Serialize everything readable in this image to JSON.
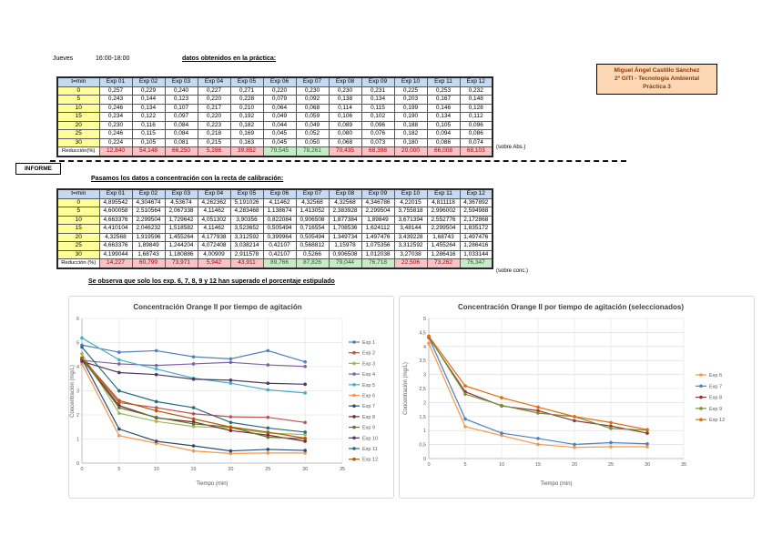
{
  "header": {
    "day": "Jueves",
    "time": "16:00-18:00",
    "note": "datos obtenidos en la práctica:"
  },
  "name_card": {
    "line1": "Miguel Ángel Castillo Sánchez",
    "line2": "2º GITI - Tecnología Ambiental",
    "line3": "Práctica 3"
  },
  "informe_label": "INFORME",
  "section2_note": "Pasamos los datos a concentración con la recta de calibración:",
  "observation": "Se observa que solo los exp. 6, 7, 8, 9 y 12 han superado el porcentaje estipulado",
  "table_abs": {
    "col_headers": [
      "t=min",
      "Exp 01",
      "Exp 02",
      "Exp 03",
      "Exp 04",
      "Exp 05",
      "Exp 06",
      "Exp 07",
      "Exp 08",
      "Exp 09",
      "Exp 10",
      "Exp 11",
      "Exp 12"
    ],
    "time_rows": [
      {
        "t": "0",
        "values": [
          "0,257",
          "0,229",
          "0,240",
          "0,227",
          "0,271",
          "0,220",
          "0,230",
          "0,230",
          "0,231",
          "0,225",
          "0,253",
          "0,232"
        ]
      },
      {
        "t": "5",
        "values": [
          "0,243",
          "0,144",
          "0,123",
          "0,220",
          "0,228",
          "0,079",
          "0,092",
          "0,138",
          "0,134",
          "0,203",
          "0,167",
          "0,148"
        ]
      },
      {
        "t": "10",
        "values": [
          "0,246",
          "0,134",
          "0,107",
          "0,217",
          "0,210",
          "0,064",
          "0,068",
          "0,114",
          "0,115",
          "0,199",
          "0,146",
          "0,128"
        ]
      },
      {
        "t": "15",
        "values": [
          "0,234",
          "0,122",
          "0,097",
          "0,220",
          "0,192",
          "0,049",
          "0,059",
          "0,106",
          "0,102",
          "0,190",
          "0,134",
          "0,112"
        ]
      },
      {
        "t": "20",
        "values": [
          "0,230",
          "0,116",
          "0,084",
          "0,223",
          "0,182",
          "0,044",
          "0,049",
          "0,089",
          "0,096",
          "0,188",
          "0,105",
          "0,096"
        ]
      },
      {
        "t": "25",
        "values": [
          "0,246",
          "0,115",
          "0,084",
          "0,218",
          "0,169",
          "0,045",
          "0,052",
          "0,080",
          "0,076",
          "0,182",
          "0,094",
          "0,086"
        ]
      },
      {
        "t": "30",
        "values": [
          "0,224",
          "0,105",
          "0,081",
          "0,215",
          "0,163",
          "0,045",
          "0,050",
          "0,068",
          "0,073",
          "0,180",
          "0,086",
          "0,074"
        ]
      }
    ],
    "reduction_label": "Reducción(%)",
    "reduction": [
      {
        "text": "12,840",
        "state": "fail"
      },
      {
        "text": "54,148",
        "state": "fail"
      },
      {
        "text": "66,250",
        "state": "fail"
      },
      {
        "text": "5,286",
        "state": "fail"
      },
      {
        "text": "39,852",
        "state": "fail"
      },
      {
        "text": "79,545",
        "state": "pass"
      },
      {
        "text": "78,261",
        "state": "pass"
      },
      {
        "text": "70,435",
        "state": "fail"
      },
      {
        "text": "68,398",
        "state": "fail"
      },
      {
        "text": "20,000",
        "state": "fail"
      },
      {
        "text": "66,008",
        "state": "fail"
      },
      {
        "text": "68,103",
        "state": "fail"
      }
    ],
    "suffix": "(sobre Abs.)"
  },
  "table_conc": {
    "col_headers": [
      "t=min",
      "Exp 01",
      "Exp 02",
      "Exp 03",
      "Exp 04",
      "Exp 05",
      "Exp 06",
      "Exp 07",
      "Exp 08",
      "Exp 09",
      "Exp 10",
      "Exp 11",
      "Exp 12"
    ],
    "time_rows": [
      {
        "t": "0",
        "values": [
          "4,895542",
          "4,304674",
          "4,53674",
          "4,262362",
          "5,191026",
          "4,11462",
          "4,32568",
          "4,32568",
          "4,346786",
          "4,22015",
          "4,811118",
          "4,367892"
        ]
      },
      {
        "t": "5",
        "values": [
          "4,600058",
          "2,510564",
          "2,067338",
          "4,11462",
          "4,283468",
          "1,138674",
          "1,413052",
          "2,383928",
          "2,299504",
          "3,755818",
          "2,996002",
          "2,594988"
        ]
      },
      {
        "t": "10",
        "values": [
          "4,663376",
          "2,299504",
          "1,729642",
          "4,051302",
          "3,90356",
          "0,822084",
          "0,906508",
          "1,877384",
          "1,89849",
          "3,671394",
          "2,552776",
          "2,172868"
        ]
      },
      {
        "t": "15",
        "values": [
          "4,410104",
          "2,046232",
          "1,518582",
          "4,11462",
          "3,523652",
          "0,505494",
          "0,716554",
          "1,708536",
          "1,624112",
          "3,48144",
          "2,299504",
          "1,835172"
        ]
      },
      {
        "t": "20",
        "values": [
          "4,32568",
          "1,919596",
          "1,455264",
          "4,177938",
          "3,312592",
          "0,399964",
          "0,505494",
          "1,349734",
          "1,497476",
          "3,439228",
          "1,68743",
          "1,497476"
        ]
      },
      {
        "t": "25",
        "values": [
          "4,663376",
          "1,89849",
          "1,244204",
          "4,072408",
          "3,038214",
          "0,42107",
          "0,568812",
          "1,15978",
          "1,075356",
          "3,312592",
          "1,455264",
          "1,286416"
        ]
      },
      {
        "t": "30",
        "values": [
          "4,199044",
          "1,68743",
          "1,180886",
          "4,00909",
          "2,911578",
          "0,42107",
          "0,5266",
          "0,906508",
          "1,012038",
          "3,27038",
          "1,286416",
          "1,033144"
        ]
      }
    ],
    "reduction_label": "Reducción (%)",
    "reduction": [
      {
        "text": "14,227",
        "state": "fail"
      },
      {
        "text": "60,799",
        "state": "fail"
      },
      {
        "text": "73,971",
        "state": "fail"
      },
      {
        "text": "5,942",
        "state": "fail"
      },
      {
        "text": "43,911",
        "state": "fail"
      },
      {
        "text": "89,766",
        "state": "pass"
      },
      {
        "text": "87,826",
        "state": "pass"
      },
      {
        "text": "79,044",
        "state": "pass"
      },
      {
        "text": "76,718",
        "state": "pass"
      },
      {
        "text": "22,506",
        "state": "fail"
      },
      {
        "text": "73,262",
        "state": "fail"
      },
      {
        "text": "76,347",
        "state": "pass"
      }
    ],
    "suffix": "(sobre conc.)"
  },
  "colors": {
    "header_fill": "#C5D9F1",
    "time_fill": "#FFFF99",
    "fail_fill": "#F8C3C6",
    "fail_text": "#B40000",
    "pass_fill": "#C8EAC8",
    "pass_text": "#1E6B1E",
    "card_fill": "#FBD7B4"
  },
  "chart_data": [
    {
      "type": "line",
      "title": "Concentración Orange II por tiempo de agitación",
      "xlabel": "Tiempo (min)",
      "ylabel": "Concentración (mg/L)",
      "x": [
        0,
        5,
        10,
        15,
        20,
        25,
        30
      ],
      "xlim": [
        0,
        35
      ],
      "xticks": [
        0,
        5,
        10,
        15,
        20,
        25,
        30,
        35
      ],
      "ylim": [
        0,
        6
      ],
      "yticks": [
        0,
        1,
        2,
        3,
        4,
        5,
        6
      ],
      "grid": true,
      "legend_position": "right",
      "series": [
        {
          "name": "Exp 1",
          "color": "#4F81BD",
          "values": [
            4.895542,
            4.600058,
            4.663376,
            4.410104,
            4.32568,
            4.663376,
            4.199044
          ]
        },
        {
          "name": "Exp 2",
          "color": "#C0504D",
          "values": [
            4.304674,
            2.510564,
            2.299504,
            2.046232,
            1.919596,
            1.89849,
            1.68743
          ]
        },
        {
          "name": "Exp 3",
          "color": "#9BBB59",
          "values": [
            4.53674,
            2.067338,
            1.729642,
            1.518582,
            1.455264,
            1.244204,
            1.180886
          ]
        },
        {
          "name": "Exp 4",
          "color": "#8064A2",
          "values": [
            4.262362,
            4.11462,
            4.051302,
            4.11462,
            4.177938,
            4.072408,
            4.00909
          ]
        },
        {
          "name": "Exp 5",
          "color": "#4BACC6",
          "values": [
            5.191026,
            4.283468,
            3.90356,
            3.523652,
            3.312592,
            3.038214,
            2.911578
          ]
        },
        {
          "name": "Exp 6",
          "color": "#F79646",
          "values": [
            4.11462,
            1.138674,
            0.822084,
            0.505494,
            0.399964,
            0.42107,
            0.42107
          ]
        },
        {
          "name": "Exp 7",
          "color": "#2C4D75",
          "values": [
            4.32568,
            1.413052,
            0.906508,
            0.716554,
            0.505494,
            0.568812,
            0.5266
          ]
        },
        {
          "name": "Exp 8",
          "color": "#772C2A",
          "values": [
            4.32568,
            2.383928,
            1.877384,
            1.708536,
            1.349734,
            1.15978,
            0.906508
          ]
        },
        {
          "name": "Exp 9",
          "color": "#5F7530",
          "values": [
            4.346786,
            2.299504,
            1.89849,
            1.624112,
            1.497476,
            1.075356,
            1.012038
          ]
        },
        {
          "name": "Exp 10",
          "color": "#4D3B62",
          "values": [
            4.22015,
            3.755818,
            3.671394,
            3.48144,
            3.439228,
            3.312592,
            3.27038
          ]
        },
        {
          "name": "Exp 11",
          "color": "#276A7C",
          "values": [
            4.811118,
            2.996002,
            2.552776,
            2.299504,
            1.68743,
            1.455264,
            1.286416
          ]
        },
        {
          "name": "Exp 12",
          "color": "#B65708",
          "values": [
            4.367892,
            2.594988,
            2.172868,
            1.835172,
            1.497476,
            1.286416,
            1.033144
          ]
        }
      ]
    },
    {
      "type": "line",
      "title": "Concentración Orange II por tiempo de agitación (seleccionados)",
      "xlabel": "Tiempo (min)",
      "ylabel": "Concentración (mg/L)",
      "x": [
        0,
        5,
        10,
        15,
        20,
        25,
        30
      ],
      "xlim": [
        0,
        35
      ],
      "xticks": [
        0,
        5,
        10,
        15,
        20,
        25,
        30,
        35
      ],
      "ylim": [
        0,
        5
      ],
      "yticks": [
        0,
        0.5,
        1,
        1.5,
        2,
        2.5,
        3,
        3.5,
        4,
        4.5,
        5
      ],
      "grid": true,
      "legend_position": "right",
      "series": [
        {
          "name": "Exp 6",
          "color": "#F79646",
          "values": [
            4.11462,
            1.138674,
            0.822084,
            0.505494,
            0.399964,
            0.42107,
            0.42107
          ]
        },
        {
          "name": "Exp 7",
          "color": "#4F81BD",
          "values": [
            4.32568,
            1.413052,
            0.906508,
            0.716554,
            0.505494,
            0.568812,
            0.5266
          ]
        },
        {
          "name": "Exp 8",
          "color": "#943634",
          "values": [
            4.32568,
            2.383928,
            1.877384,
            1.708536,
            1.349734,
            1.15978,
            0.906508
          ]
        },
        {
          "name": "Exp 9",
          "color": "#76923C",
          "values": [
            4.346786,
            2.299504,
            1.89849,
            1.624112,
            1.497476,
            1.075356,
            1.012038
          ]
        },
        {
          "name": "Exp 12",
          "color": "#E36C0A",
          "values": [
            4.367892,
            2.594988,
            2.172868,
            1.835172,
            1.497476,
            1.286416,
            1.033144
          ]
        }
      ]
    }
  ]
}
